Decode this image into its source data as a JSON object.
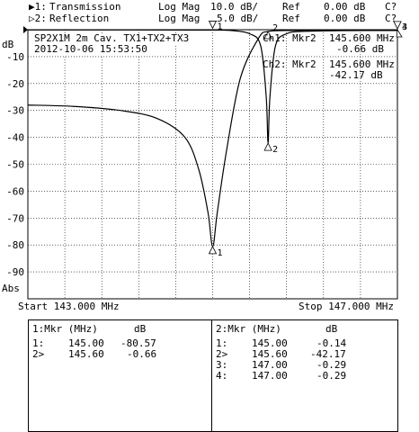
{
  "header": {
    "ch1": {
      "marker": "▶1:",
      "name": "Transmission",
      "format": "Log Mag",
      "scale": "10.0 dB/",
      "ref_label": "Ref",
      "ref": "0.00 dB",
      "cal": "C?"
    },
    "ch2": {
      "marker": "▷2:",
      "name": "Reflection",
      "format": "Log Mag",
      "scale": "5.0 dB/",
      "ref_label": "Ref",
      "ref": "0.00 dB",
      "cal": "C?"
    }
  },
  "annotations": {
    "title_line1": "SP2X1M 2m Cav. TX1+TX2+TX3",
    "title_line2": "2012-10-06 15:53:50",
    "ch1_marker_label": "Ch1: Mkr2",
    "ch1_marker_freq": "145.600 MHz",
    "ch1_marker_value": "-0.66 dB",
    "ch2_marker_label": "Ch2: Mkr2",
    "ch2_marker_freq": "145.600 MHz",
    "ch2_marker_value": "-42.17 dB",
    "db_label": "dB",
    "abs_label": "Abs"
  },
  "freq": {
    "start_label": "Start 143.000 MHz",
    "stop_label": "Stop 147.000 MHz"
  },
  "tables": {
    "left": {
      "title": "1:Mkr (MHz)",
      "db_header": "dB",
      "rows": [
        {
          "id": "1:",
          "freq": "145.00",
          "db": "-80.57"
        },
        {
          "id": "2>",
          "freq": "145.60",
          "db": "-0.66"
        }
      ]
    },
    "right": {
      "title": "2:Mkr (MHz)",
      "db_header": "dB",
      "rows": [
        {
          "id": "1:",
          "freq": "145.00",
          "db": "-0.14"
        },
        {
          "id": "2>",
          "freq": "145.60",
          "db": "-42.17"
        },
        {
          "id": "3:",
          "freq": "147.00",
          "db": "-0.29"
        },
        {
          "id": "4:",
          "freq": "147.00",
          "db": "-0.29"
        }
      ]
    }
  },
  "chart_data": {
    "type": "line",
    "xlim": [
      143.0,
      147.0
    ],
    "ylim": [
      -100,
      0
    ],
    "ytick_labels": [
      "-10",
      "-20",
      "-30",
      "-40",
      "-50",
      "-60",
      "-70",
      "-80",
      "-90"
    ],
    "grid": true,
    "series": [
      {
        "x": [
          143.0,
          143.5,
          144.0,
          144.4,
          144.7,
          144.85,
          144.95,
          145.0,
          145.05,
          145.15,
          145.3,
          145.5,
          145.6,
          145.8,
          146.2,
          147.0
        ],
        "values": [
          -28,
          -28.5,
          -30,
          -33,
          -40,
          -52,
          -68,
          -80.57,
          -68,
          -45,
          -18,
          -3,
          -0.66,
          -0.3,
          -0.2,
          -0.29
        ]
      },
      {
        "x": [
          143.0,
          144.0,
          144.8,
          145.0,
          145.2,
          145.4,
          145.52,
          145.58,
          145.6,
          145.62,
          145.68,
          145.8,
          146.0,
          146.4,
          147.0
        ],
        "values": [
          -0.1,
          -0.1,
          -0.12,
          -0.14,
          -0.3,
          -1.5,
          -6,
          -25,
          -42.17,
          -25,
          -6,
          -1.5,
          -0.6,
          -0.35,
          -0.29
        ]
      }
    ],
    "markers": [
      {
        "trace": 1,
        "id": "1",
        "x": 145.0,
        "y": -80.57
      },
      {
        "trace": 1,
        "id": "2",
        "x": 145.6,
        "y": -0.66
      },
      {
        "trace": 2,
        "id": "1",
        "x": 145.0,
        "y": -0.14
      },
      {
        "trace": 2,
        "id": "2",
        "x": 145.6,
        "y": -42.17
      },
      {
        "trace": 2,
        "id": "3",
        "x": 147.0,
        "y": -0.29
      },
      {
        "trace": 2,
        "id": "4",
        "x": 147.0,
        "y": -0.29
      }
    ]
  }
}
